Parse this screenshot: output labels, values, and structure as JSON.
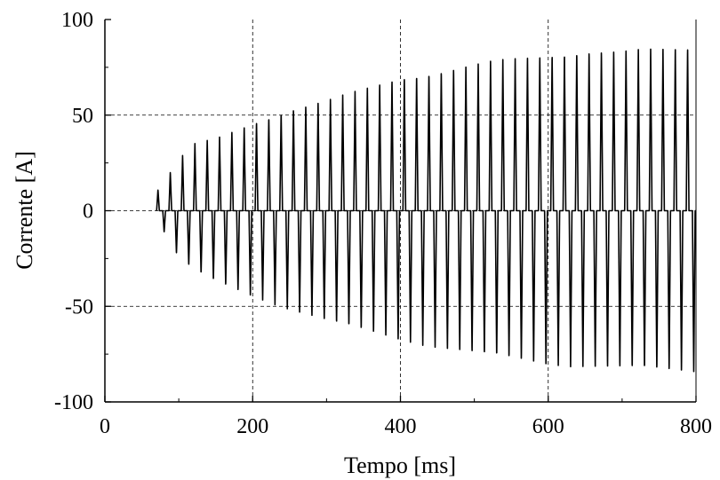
{
  "chart_data": {
    "type": "line",
    "title": "",
    "xlabel": "Tempo [ms]",
    "ylabel": "Corrente [A]",
    "xlim": [
      0,
      800
    ],
    "ylim": [
      -100,
      100
    ],
    "xticks": [
      0,
      200,
      400,
      600,
      800
    ],
    "yticks": [
      -100,
      -50,
      0,
      50,
      100
    ],
    "xtick_labels": [
      "0",
      "200",
      "400",
      "600",
      "800"
    ],
    "ytick_labels": [
      "-100",
      "-50",
      "0",
      "50",
      "100"
    ],
    "grid": true,
    "grid_style": "dashed",
    "legend": false,
    "line_color": "#000000",
    "series": [
      {
        "description": "inrush current oscillation (~60 Hz), starts at ~70 ms, envelope grows",
        "start_ms": 70,
        "end_ms": 800,
        "period_ms": 16.67,
        "envelope_positive": {
          "x": [
            70,
            90,
            100,
            120,
            150,
            200,
            250,
            300,
            350,
            400,
            450,
            500,
            550,
            600,
            650,
            700,
            750,
            800
          ],
          "y": [
            10,
            21,
            27,
            35,
            38,
            46,
            53,
            58,
            64,
            70,
            73,
            77,
            80,
            82,
            84,
            84,
            85,
            86
          ]
        },
        "envelope_negative": {
          "x": [
            70,
            90,
            100,
            120,
            150,
            200,
            250,
            300,
            350,
            400,
            450,
            500,
            550,
            600,
            650,
            700,
            750,
            800
          ],
          "y": [
            -3,
            -19,
            -24,
            -31,
            -37,
            -45,
            -52,
            -58,
            -63,
            -68,
            -72,
            -75,
            -78,
            -81,
            -82,
            -83,
            -84,
            -85
          ]
        }
      }
    ]
  }
}
